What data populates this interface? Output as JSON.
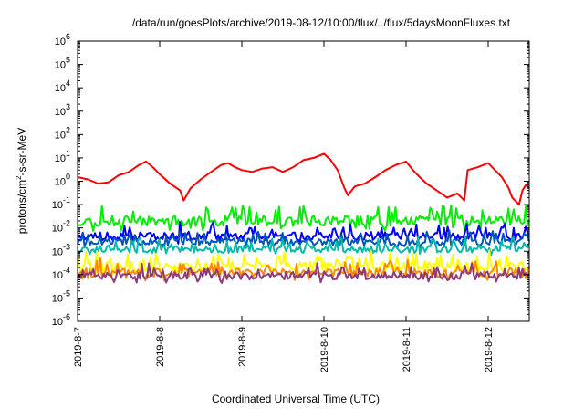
{
  "chart_data": {
    "type": "line",
    "title": "/data/run/goesPlots/archive/2019-08-12/10:00/flux/../flux/5daysMoonFluxes.txt",
    "xlabel": "Coordinated Universal Time (UTC)",
    "ylabel_parts": [
      "protons/cm",
      "2",
      "-s-sr-MeV"
    ],
    "yscale": "log",
    "ylim": [
      1e-06,
      1000000.0
    ],
    "yticks": [
      {
        "base": "10",
        "exp": "-6",
        "value": 1e-06
      },
      {
        "base": "10",
        "exp": "-5",
        "value": 1e-05
      },
      {
        "base": "10",
        "exp": "-4",
        "value": 0.0001
      },
      {
        "base": "10",
        "exp": "-3",
        "value": 0.001
      },
      {
        "base": "10",
        "exp": "-2",
        "value": 0.01
      },
      {
        "base": "10",
        "exp": "-1",
        "value": 0.1
      },
      {
        "base": "10",
        "exp": "0",
        "value": 1
      },
      {
        "base": "10",
        "exp": "1",
        "value": 10
      },
      {
        "base": "10",
        "exp": "2",
        "value": 100
      },
      {
        "base": "10",
        "exp": "3",
        "value": 1000
      },
      {
        "base": "10",
        "exp": "4",
        "value": 10000
      },
      {
        "base": "10",
        "exp": "5",
        "value": 100000
      },
      {
        "base": "10",
        "exp": "6",
        "value": 1000000
      }
    ],
    "xlim": [
      "2019-08-07T00:00",
      "2019-08-12T12:00"
    ],
    "xticks": [
      {
        "label": "2019-8-7",
        "date": "2019-08-07"
      },
      {
        "label": "2019-8-8",
        "date": "2019-08-08"
      },
      {
        "label": "2019-8-9",
        "date": "2019-08-09"
      },
      {
        "label": "2019-8-10",
        "date": "2019-08-10"
      },
      {
        "label": "2019-8-11",
        "date": "2019-08-11"
      },
      {
        "label": "2019-8-12",
        "date": "2019-08-12"
      }
    ],
    "grid": false,
    "legend": "none",
    "series": [
      {
        "color": "#ff0000",
        "style": "smooth",
        "points": [
          [
            "2019-08-07T00:00",
            1.5
          ],
          [
            "2019-08-07T03:00",
            1.2
          ],
          [
            "2019-08-07T06:00",
            0.8
          ],
          [
            "2019-08-07T09:00",
            0.9
          ],
          [
            "2019-08-07T12:00",
            1.8
          ],
          [
            "2019-08-07T15:00",
            2.5
          ],
          [
            "2019-08-07T18:00",
            5
          ],
          [
            "2019-08-07T20:00",
            7
          ],
          [
            "2019-08-07T22:00",
            4
          ],
          [
            "2019-08-08T00:00",
            2
          ],
          [
            "2019-08-08T03:00",
            0.8
          ],
          [
            "2019-08-08T06:00",
            0.4
          ],
          [
            "2019-08-08T07:00",
            0.15
          ],
          [
            "2019-08-08T09:00",
            0.5
          ],
          [
            "2019-08-08T12:00",
            1.2
          ],
          [
            "2019-08-08T15:00",
            2.5
          ],
          [
            "2019-08-08T18:00",
            5
          ],
          [
            "2019-08-08T20:00",
            6
          ],
          [
            "2019-08-08T22:00",
            4
          ],
          [
            "2019-08-09T00:00",
            3
          ],
          [
            "2019-08-09T03:00",
            2.5
          ],
          [
            "2019-08-09T06:00",
            3.5
          ],
          [
            "2019-08-09T09:00",
            4
          ],
          [
            "2019-08-09T12:00",
            2.5
          ],
          [
            "2019-08-09T15:00",
            4
          ],
          [
            "2019-08-09T18:00",
            8
          ],
          [
            "2019-08-09T21:00",
            10
          ],
          [
            "2019-08-10T00:00",
            15
          ],
          [
            "2019-08-10T02:00",
            8
          ],
          [
            "2019-08-10T04:00",
            3
          ],
          [
            "2019-08-10T06:00",
            0.5
          ],
          [
            "2019-08-10T07:00",
            0.25
          ],
          [
            "2019-08-10T09:00",
            0.6
          ],
          [
            "2019-08-10T12:00",
            0.8
          ],
          [
            "2019-08-10T15:00",
            1.5
          ],
          [
            "2019-08-10T18:00",
            3
          ],
          [
            "2019-08-10T21:00",
            5
          ],
          [
            "2019-08-11T00:00",
            7
          ],
          [
            "2019-08-11T02:00",
            3
          ],
          [
            "2019-08-11T04:00",
            1.5
          ],
          [
            "2019-08-11T06:00",
            0.8
          ],
          [
            "2019-08-11T09:00",
            0.4
          ],
          [
            "2019-08-11T12:00",
            0.2
          ],
          [
            "2019-08-11T15:00",
            0.3
          ],
          [
            "2019-08-11T17:00",
            0.15
          ],
          [
            "2019-08-11T18:00",
            3
          ],
          [
            "2019-08-11T21:00",
            4
          ],
          [
            "2019-08-12T00:00",
            6
          ],
          [
            "2019-08-12T02:00",
            3
          ],
          [
            "2019-08-12T04:00",
            1.5
          ],
          [
            "2019-08-12T06:00",
            0.5
          ],
          [
            "2019-08-12T07:00",
            0.2
          ],
          [
            "2019-08-12T09:00",
            0.1
          ],
          [
            "2019-08-12T10:00",
            0.4
          ],
          [
            "2019-08-12T11:00",
            0.7
          ],
          [
            "2019-08-12T12:00",
            0.5
          ]
        ]
      },
      {
        "color": "#00ee00",
        "style": "noisy",
        "base": 0.02,
        "amp": 0.45,
        "seed": 11
      },
      {
        "color": "#0000ff",
        "style": "noisy",
        "base": 0.0045,
        "amp": 0.35,
        "seed": 23
      },
      {
        "color": "#0055bb",
        "style": "noisy",
        "base": 0.0025,
        "amp": 0.3,
        "seed": 31
      },
      {
        "color": "#00bbaa",
        "style": "noisy",
        "base": 0.0012,
        "amp": 0.3,
        "seed": 37
      },
      {
        "color": "#ffff00",
        "style": "noisy",
        "base": 0.00022,
        "amp": 0.4,
        "seed": 41
      },
      {
        "color": "#ff8800",
        "style": "noisy",
        "base": 0.00012,
        "amp": 0.35,
        "seed": 47
      },
      {
        "color": "#8b3a7a",
        "style": "noisy",
        "base": 9e-05,
        "amp": 0.32,
        "seed": 53
      }
    ]
  }
}
